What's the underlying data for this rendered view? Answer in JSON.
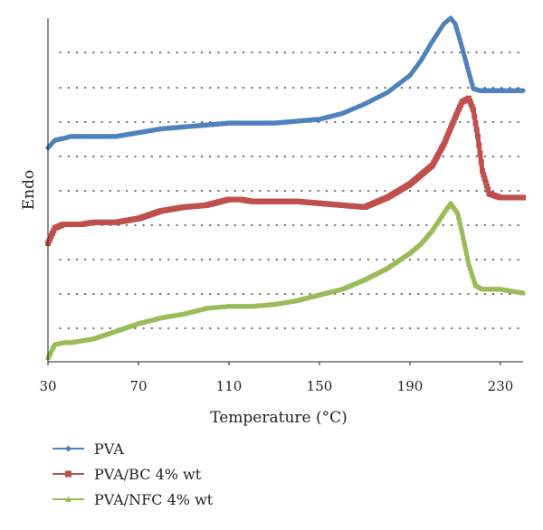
{
  "chart_data": {
    "type": "line",
    "title": "",
    "xlabel": "Temperature (°C)",
    "ylabel": "Endo",
    "xlim": [
      30,
      240
    ],
    "ylim": [
      0,
      9
    ],
    "xticks": [
      30,
      70,
      110,
      150,
      190,
      230
    ],
    "y_axis_ticks_labeled": false,
    "grid": "horizontal-dotted",
    "legend_position": "bottom-left",
    "colors": {
      "axis": "#231f20",
      "grid": "#231f20"
    },
    "series": [
      {
        "name": "PVA",
        "color": "#4f81bd",
        "marker": "diamond",
        "x": [
          30,
          33,
          37,
          40,
          45,
          50,
          55,
          60,
          70,
          80,
          90,
          100,
          110,
          115,
          120,
          130,
          140,
          150,
          160,
          170,
          180,
          190,
          195,
          200,
          205,
          208,
          210,
          212,
          215,
          218,
          221,
          225,
          230,
          235,
          240
        ],
        "y": [
          5.6,
          5.8,
          5.85,
          5.9,
          5.9,
          5.9,
          5.9,
          5.9,
          6.0,
          6.1,
          6.15,
          6.2,
          6.25,
          6.25,
          6.25,
          6.25,
          6.3,
          6.35,
          6.5,
          6.75,
          7.05,
          7.5,
          7.9,
          8.4,
          8.85,
          9.0,
          8.85,
          8.45,
          7.8,
          7.15,
          7.1,
          7.1,
          7.1,
          7.1,
          7.1
        ]
      },
      {
        "name": "PVA/BC 4% wt",
        "color": "#c0504d",
        "marker": "square",
        "x": [
          30,
          33,
          37,
          40,
          45,
          50,
          55,
          60,
          70,
          80,
          90,
          100,
          110,
          115,
          120,
          130,
          140,
          150,
          160,
          170,
          180,
          190,
          200,
          205,
          210,
          213,
          216,
          218,
          220,
          222,
          225,
          230,
          235,
          240
        ],
        "y": [
          3.1,
          3.5,
          3.6,
          3.6,
          3.6,
          3.65,
          3.65,
          3.65,
          3.75,
          3.95,
          4.05,
          4.1,
          4.25,
          4.25,
          4.2,
          4.2,
          4.2,
          4.15,
          4.1,
          4.05,
          4.3,
          4.65,
          5.15,
          5.7,
          6.4,
          6.8,
          6.9,
          6.6,
          5.9,
          5.0,
          4.4,
          4.3,
          4.3,
          4.3
        ]
      },
      {
        "name": "PVA/NFC 4% wt",
        "color": "#9bbb59",
        "marker": "triangle",
        "x": [
          30,
          33,
          37,
          40,
          45,
          50,
          55,
          60,
          70,
          80,
          90,
          100,
          110,
          115,
          120,
          130,
          140,
          150,
          160,
          170,
          180,
          190,
          195,
          200,
          205,
          208,
          211,
          213,
          216,
          219,
          222,
          225,
          230,
          235,
          240
        ],
        "y": [
          0.1,
          0.45,
          0.5,
          0.5,
          0.55,
          0.6,
          0.7,
          0.8,
          1.0,
          1.15,
          1.25,
          1.4,
          1.45,
          1.45,
          1.45,
          1.5,
          1.6,
          1.75,
          1.9,
          2.15,
          2.45,
          2.85,
          3.1,
          3.45,
          3.9,
          4.15,
          3.9,
          3.4,
          2.55,
          2.0,
          1.9,
          1.9,
          1.9,
          1.85,
          1.8
        ]
      }
    ]
  }
}
